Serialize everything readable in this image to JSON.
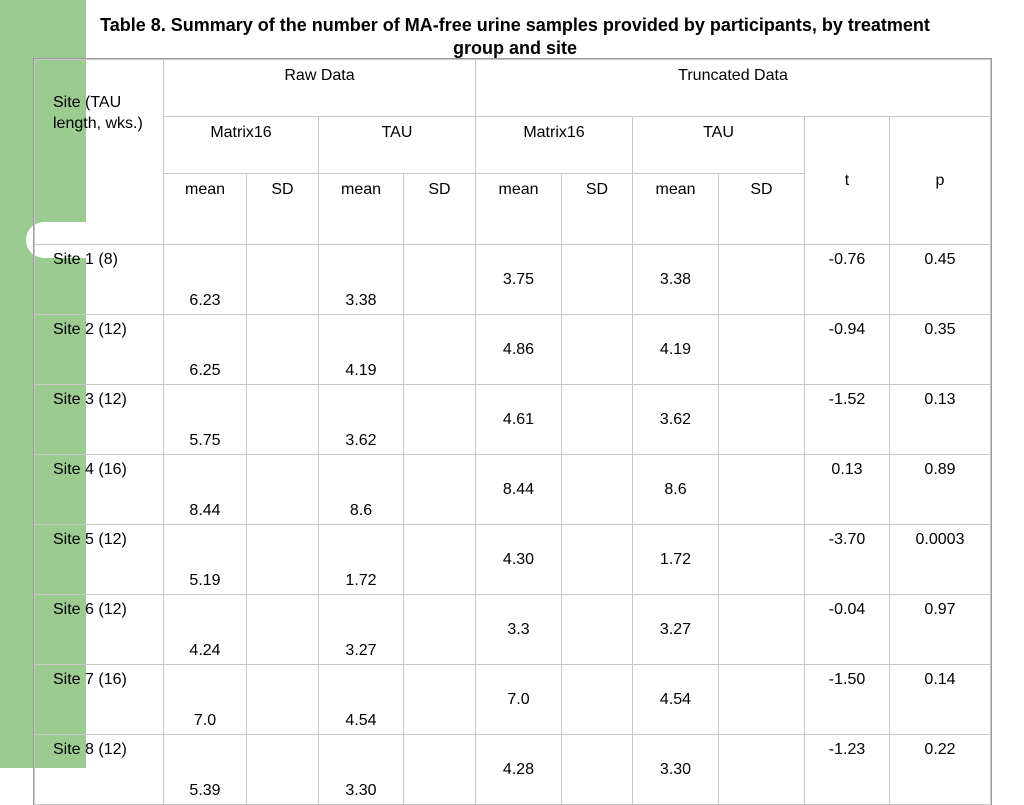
{
  "title": "Table 8. Summary of the number of MA-free urine samples provided by participants, by treatment group and site",
  "header": {
    "site_label": "Site (TAU length, wks.)",
    "raw_data": "Raw Data",
    "truncated_data": "Truncated Data",
    "matrix16": "Matrix16",
    "tau": "TAU",
    "mean": "mean",
    "sd": "SD",
    "t": "t",
    "p": "p"
  },
  "rows": [
    {
      "site": "Site 1 (8)",
      "raw_m16_mean": "6.23",
      "raw_m16_sd": "",
      "raw_tau_mean": "3.38",
      "raw_tau_sd": "",
      "tr_m16_mean": "3.75",
      "tr_m16_sd": "",
      "tr_tau_mean": "3.38",
      "tr_tau_sd": "",
      "t": "-0.76",
      "p": "0.45"
    },
    {
      "site": "Site 2 (12)",
      "raw_m16_mean": "6.25",
      "raw_m16_sd": "",
      "raw_tau_mean": "4.19",
      "raw_tau_sd": "",
      "tr_m16_mean": "4.86",
      "tr_m16_sd": "",
      "tr_tau_mean": "4.19",
      "tr_tau_sd": "",
      "t": "-0.94",
      "p": "0.35"
    },
    {
      "site": "Site 3 (12)",
      "raw_m16_mean": "5.75",
      "raw_m16_sd": "",
      "raw_tau_mean": "3.62",
      "raw_tau_sd": "",
      "tr_m16_mean": "4.61",
      "tr_m16_sd": "",
      "tr_tau_mean": "3.62",
      "tr_tau_sd": "",
      "t": "-1.52",
      "p": "0.13"
    },
    {
      "site": "Site 4 (16)",
      "raw_m16_mean": "8.44",
      "raw_m16_sd": "",
      "raw_tau_mean": "8.6",
      "raw_tau_sd": "",
      "tr_m16_mean": "8.44",
      "tr_m16_sd": "",
      "tr_tau_mean": "8.6",
      "tr_tau_sd": "",
      "t": "0.13",
      "p": "0.89"
    },
    {
      "site": "Site 5 (12)",
      "raw_m16_mean": "5.19",
      "raw_m16_sd": "",
      "raw_tau_mean": "1.72",
      "raw_tau_sd": "",
      "tr_m16_mean": "4.30",
      "tr_m16_sd": "",
      "tr_tau_mean": "1.72",
      "tr_tau_sd": "",
      "t": "-3.70",
      "p": "0.0003"
    },
    {
      "site": "Site 6 (12)",
      "raw_m16_mean": "4.24",
      "raw_m16_sd": "",
      "raw_tau_mean": "3.27",
      "raw_tau_sd": "",
      "tr_m16_mean": "3.3",
      "tr_m16_sd": "",
      "tr_tau_mean": "3.27",
      "tr_tau_sd": "",
      "t": "-0.04",
      "p": "0.97"
    },
    {
      "site": "Site 7 (16)",
      "raw_m16_mean": "7.0",
      "raw_m16_sd": "",
      "raw_tau_mean": "4.54",
      "raw_tau_sd": "",
      "tr_m16_mean": "7.0",
      "tr_m16_sd": "",
      "tr_tau_mean": "4.54",
      "tr_tau_sd": "",
      "t": "-1.50",
      "p": "0.14"
    },
    {
      "site": "Site 8 (12)",
      "raw_m16_mean": "5.39",
      "raw_m16_sd": "",
      "raw_tau_mean": "3.30",
      "raw_tau_sd": "",
      "tr_m16_mean": "4.28",
      "tr_m16_sd": "",
      "tr_tau_mean": "3.30",
      "tr_tau_sd": "",
      "t": "-1.23",
      "p": "0.22"
    }
  ],
  "colors": {
    "accent_green": "#9ccb92",
    "grid": "#c8c8c8"
  }
}
